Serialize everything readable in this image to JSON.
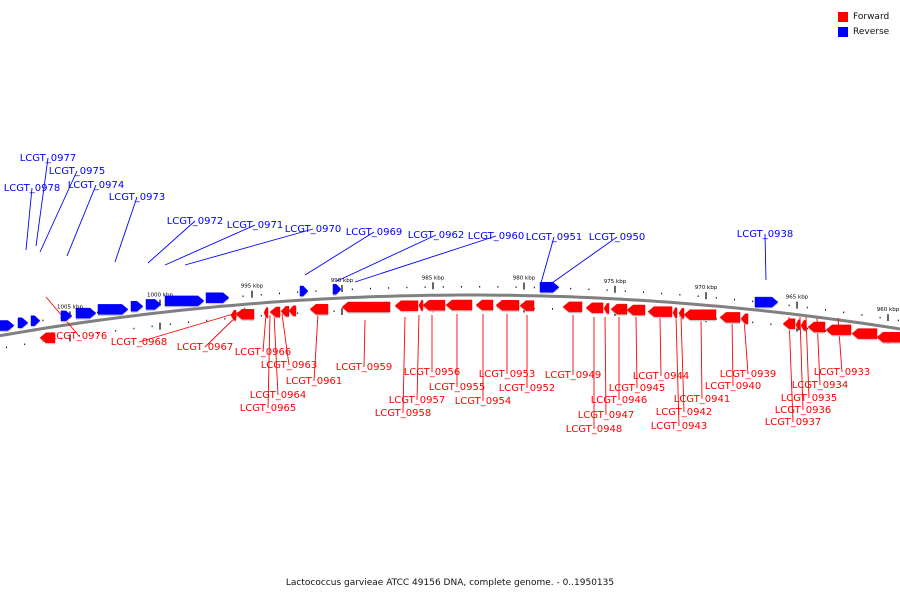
{
  "legend": [
    {
      "label": "Forward",
      "color": "#ff0000"
    },
    {
      "label": "Reverse",
      "color": "#0000ff"
    }
  ],
  "caption": "Lactococcus garvieae ATCC 49156 DNA, complete genome. - 0..1950135",
  "colors": {
    "forward": "#ff0000",
    "reverse": "#0000ff",
    "backbone": "#808080"
  },
  "ticks": [
    "1005 kbp",
    "1000 kbp",
    "995 kbp",
    "990 kbp",
    "985 kbp",
    "980 kbp",
    "975 kbp",
    "970 kbp",
    "965 kbp",
    "960 kbp"
  ],
  "reverse_labels": [
    "LCGT_0977",
    "LCGT_0975",
    "LCGT_0978",
    "LCGT_0974",
    "LCGT_0973",
    "LCGT_0972",
    "LCGT_0971",
    "LCGT_0970",
    "LCGT_0969",
    "LCGT_0962",
    "LCGT_0960",
    "LCGT_0951",
    "LCGT_0950",
    "LCGT_0938"
  ],
  "forward_labels": [
    "LCGT_0976",
    "LCGT_0968",
    "LCGT_0967",
    "LCGT_0966",
    "LCGT_0963",
    "LCGT_0961",
    "LCGT_0964",
    "LCGT_0965",
    "LCGT_0959",
    "LCGT_0956",
    "LCGT_0955",
    "LCGT_0957",
    "LCGT_0954",
    "LCGT_0958",
    "LCGT_0953",
    "LCGT_0952",
    "LCGT_0949",
    "LCGT_0944",
    "LCGT_0945",
    "LCGT_0946",
    "LCGT_0947",
    "LCGT_0948",
    "LCGT_0942",
    "LCGT_0943",
    "LCGT_0941",
    "LCGT_0940",
    "LCGT_0939",
    "LCGT_0933",
    "LCGT_0934",
    "LCGT_0935",
    "LCGT_0936",
    "LCGT_0937"
  ]
}
